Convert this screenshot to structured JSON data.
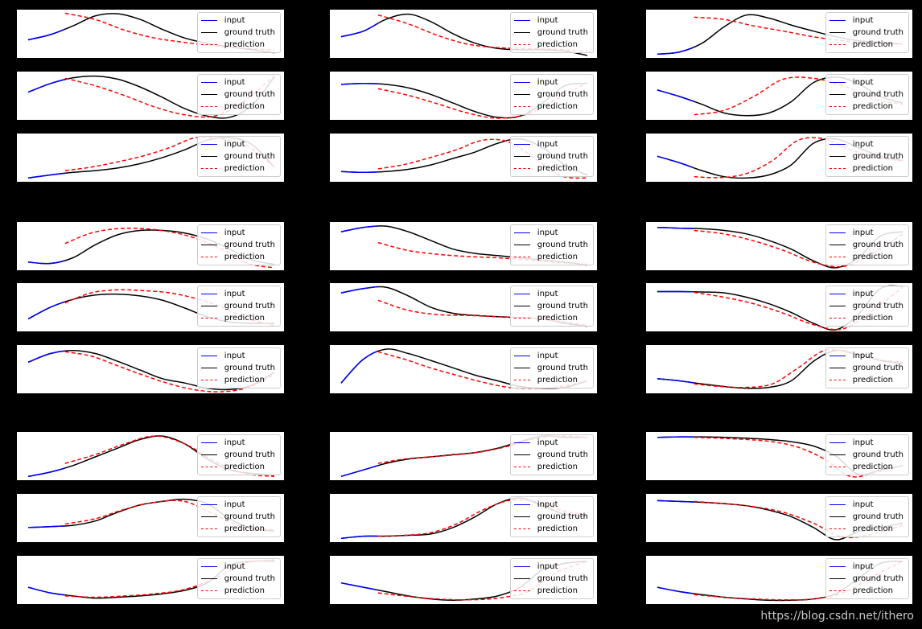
{
  "figure": {
    "watermark": "https://blog.csdn.net/ithero"
  },
  "legend": {
    "input": "input",
    "ground_truth": "ground truth",
    "prediction": "prediction"
  },
  "colors": {
    "input": "#0000ff",
    "ground_truth": "#000000",
    "prediction": "#ff0000",
    "background": "#000000",
    "panel": "#ffffff"
  },
  "chart_data": {
    "type": "line",
    "layout": "3x3 groups of 3 stacked subplots each",
    "xlim": [
      0,
      1
    ],
    "ylim": [
      0,
      1
    ],
    "input_end": 0.15,
    "grid": false,
    "legend_position": "top-right",
    "series_names": [
      "input",
      "ground truth",
      "prediction"
    ],
    "panels": [
      {
        "gt": [
          0.38,
          0.5,
          0.7,
          0.93,
          0.98,
          0.85,
          0.62,
          0.42,
          0.3,
          0.22,
          0.15,
          0.08
        ],
        "pred": [
          0.99,
          0.85,
          0.6,
          0.42,
          0.32,
          0.24,
          0.19,
          0.14
        ]
      },
      {
        "gt": [
          0.45,
          0.58,
          0.85,
          0.97,
          0.8,
          0.52,
          0.3,
          0.18,
          0.15,
          0.15,
          0.12,
          0.02
        ],
        "pred": [
          0.95,
          0.75,
          0.48,
          0.28,
          0.2,
          0.18,
          0.16,
          0.12
        ]
      },
      {
        "gt": [
          0.05,
          0.1,
          0.3,
          0.68,
          0.95,
          0.88,
          0.72,
          0.58,
          0.45,
          0.36,
          0.32,
          0.28
        ],
        "pred": [
          0.9,
          0.85,
          0.7,
          0.58,
          0.45,
          0.36,
          0.3,
          0.28
        ]
      },
      {
        "gt": [
          0.6,
          0.8,
          0.93,
          0.97,
          0.9,
          0.72,
          0.48,
          0.22,
          0.05,
          0.02,
          0.3,
          0.95
        ],
        "pred": [
          0.92,
          0.75,
          0.52,
          0.26,
          0.08,
          0.05,
          0.4,
          0.98
        ]
      },
      {
        "gt": [
          0.78,
          0.8,
          0.78,
          0.7,
          0.55,
          0.35,
          0.15,
          0.02,
          0.05,
          0.35,
          0.75,
          0.8
        ],
        "pred": [
          0.68,
          0.53,
          0.33,
          0.12,
          0.0,
          0.1,
          0.45,
          0.82
        ]
      },
      {
        "gt": [
          0.65,
          0.5,
          0.32,
          0.12,
          0.06,
          0.12,
          0.38,
          0.82,
          0.95,
          0.8,
          0.5,
          0.35
        ],
        "pred": [
          0.08,
          0.18,
          0.5,
          0.9,
          0.92,
          0.75,
          0.45,
          0.32
        ]
      },
      {
        "gt": [
          0.05,
          0.12,
          0.18,
          0.22,
          0.28,
          0.38,
          0.52,
          0.7,
          0.92,
          0.98,
          0.82,
          0.3
        ],
        "pred": [
          0.22,
          0.3,
          0.42,
          0.56,
          0.75,
          0.98,
          0.95,
          0.78,
          0.3
        ]
      },
      {
        "gt": [
          0.2,
          0.18,
          0.2,
          0.25,
          0.35,
          0.5,
          0.65,
          0.85,
          0.95,
          0.75,
          0.35,
          0.12
        ],
        "pred": [
          0.26,
          0.36,
          0.52,
          0.7,
          0.92,
          0.88,
          0.5,
          0.1,
          0.05
        ]
      },
      {
        "gt": [
          0.55,
          0.4,
          0.22,
          0.08,
          0.05,
          0.12,
          0.35,
          0.85,
          0.95,
          0.75,
          0.55,
          0.45
        ],
        "pred": [
          0.08,
          0.06,
          0.15,
          0.45,
          0.92,
          0.95,
          0.7,
          0.52,
          0.45
        ]
      },
      {
        "gt": [
          0.15,
          0.12,
          0.25,
          0.55,
          0.78,
          0.88,
          0.88,
          0.82,
          0.68,
          0.45,
          0.2,
          0.1
        ],
        "pred": [
          0.58,
          0.82,
          0.92,
          0.92,
          0.85,
          0.7,
          0.45,
          0.12,
          0.02
        ]
      },
      {
        "gt": [
          0.85,
          0.95,
          0.98,
          0.85,
          0.65,
          0.45,
          0.35,
          0.3,
          0.25,
          0.2,
          0.15,
          0.08
        ],
        "pred": [
          0.6,
          0.42,
          0.33,
          0.28,
          0.25,
          0.2,
          0.14,
          0.1
        ]
      },
      {
        "gt": [
          0.95,
          0.93,
          0.92,
          0.88,
          0.8,
          0.65,
          0.45,
          0.18,
          0.02,
          0.25,
          0.75,
          0.85
        ],
        "pred": [
          0.88,
          0.8,
          0.64,
          0.42,
          0.15,
          0.05,
          0.35,
          0.8
        ]
      },
      {
        "gt": [
          0.25,
          0.52,
          0.7,
          0.8,
          0.82,
          0.78,
          0.68,
          0.5,
          0.3,
          0.18,
          0.15,
          0.15
        ],
        "pred": [
          0.62,
          0.85,
          0.92,
          0.9,
          0.85,
          0.72,
          0.52,
          0.25,
          0.1
        ]
      },
      {
        "gt": [
          0.85,
          0.95,
          0.98,
          0.78,
          0.52,
          0.38,
          0.33,
          0.3,
          0.28,
          0.25,
          0.15,
          0.08
        ],
        "pred": [
          0.68,
          0.45,
          0.35,
          0.33,
          0.3,
          0.28,
          0.2,
          0.1
        ]
      },
      {
        "gt": [
          0.88,
          0.88,
          0.87,
          0.85,
          0.75,
          0.6,
          0.4,
          0.15,
          0.0,
          0.35,
          0.95,
          1.0
        ],
        "pred": [
          0.86,
          0.75,
          0.6,
          0.38,
          0.12,
          0.02,
          0.45,
          0.98
        ]
      },
      {
        "gt": [
          0.68,
          0.88,
          0.95,
          0.88,
          0.7,
          0.5,
          0.3,
          0.2,
          0.08,
          0.05,
          0.15,
          0.45
        ],
        "pred": [
          0.92,
          0.82,
          0.6,
          0.38,
          0.18,
          0.04,
          0.0,
          0.1,
          0.4
        ]
      },
      {
        "gt": [
          0.2,
          0.75,
          0.98,
          0.88,
          0.72,
          0.55,
          0.38,
          0.25,
          0.12,
          0.08,
          0.1,
          0.25
        ],
        "pred": [
          0.92,
          0.75,
          0.55,
          0.38,
          0.22,
          0.1,
          0.08,
          0.12,
          0.25
        ]
      },
      {
        "gt": [
          0.3,
          0.25,
          0.18,
          0.12,
          0.08,
          0.1,
          0.25,
          0.7,
          0.95,
          0.85,
          0.72,
          0.65
        ],
        "pred": [
          0.18,
          0.12,
          0.1,
          0.18,
          0.55,
          0.95,
          0.9,
          0.75,
          0.68
        ]
      },
      {
        "gt": [
          0.05,
          0.15,
          0.3,
          0.5,
          0.7,
          0.9,
          0.98,
          0.8,
          0.45,
          0.2,
          0.12,
          0.08
        ],
        "pred": [
          0.35,
          0.55,
          0.8,
          0.98,
          0.8,
          0.4,
          0.12,
          0.05
        ]
      },
      {
        "gt": [
          0.05,
          0.2,
          0.35,
          0.45,
          0.5,
          0.55,
          0.6,
          0.7,
          0.85,
          0.98,
          0.95,
          0.95
        ],
        "pred": [
          0.35,
          0.45,
          0.5,
          0.55,
          0.62,
          0.75,
          0.92,
          0.98,
          0.95
        ]
      },
      {
        "gt": [
          0.95,
          0.96,
          0.96,
          0.95,
          0.93,
          0.9,
          0.85,
          0.75,
          0.52,
          0.1,
          0.2,
          0.3
        ],
        "pred": [
          0.95,
          0.93,
          0.9,
          0.85,
          0.72,
          0.45,
          0.05,
          0.15,
          0.3
        ]
      },
      {
        "gt": [
          0.3,
          0.32,
          0.35,
          0.45,
          0.65,
          0.82,
          0.9,
          0.95,
          0.85,
          0.5,
          0.28,
          0.22
        ],
        "pred": [
          0.38,
          0.5,
          0.72,
          0.88,
          0.9,
          0.6,
          0.3,
          0.25
        ]
      },
      {
        "gt": [
          0.05,
          0.1,
          0.1,
          0.12,
          0.15,
          0.3,
          0.55,
          0.85,
          0.98,
          0.8,
          0.6,
          0.55
        ],
        "pred": [
          0.1,
          0.12,
          0.18,
          0.38,
          0.7,
          0.92,
          0.9,
          0.7,
          0.58
        ]
      },
      {
        "gt": [
          0.92,
          0.9,
          0.88,
          0.85,
          0.8,
          0.7,
          0.55,
          0.3,
          0.02,
          0.2,
          0.3,
          0.4
        ],
        "pred": [
          0.9,
          0.85,
          0.78,
          0.65,
          0.4,
          0.08,
          0.15,
          0.35
        ]
      },
      {
        "gt": [
          0.35,
          0.22,
          0.15,
          0.1,
          0.12,
          0.15,
          0.2,
          0.28,
          0.45,
          0.85,
          0.95,
          0.95
        ],
        "pred": [
          0.15,
          0.12,
          0.15,
          0.2,
          0.3,
          0.55,
          0.9,
          0.98
        ]
      },
      {
        "gt": [
          0.45,
          0.35,
          0.25,
          0.15,
          0.08,
          0.05,
          0.08,
          0.15,
          0.35,
          0.75,
          0.9,
          0.95
        ],
        "pred": [
          0.22,
          0.14,
          0.08,
          0.06,
          0.1,
          0.25,
          0.7,
          0.95
        ]
      },
      {
        "gt": [
          0.35,
          0.25,
          0.18,
          0.12,
          0.08,
          0.05,
          0.05,
          0.08,
          0.2,
          0.55,
          0.9,
          0.95
        ],
        "pred": [
          0.18,
          0.12,
          0.08,
          0.06,
          0.08,
          0.22,
          0.6,
          0.95
        ]
      }
    ]
  }
}
